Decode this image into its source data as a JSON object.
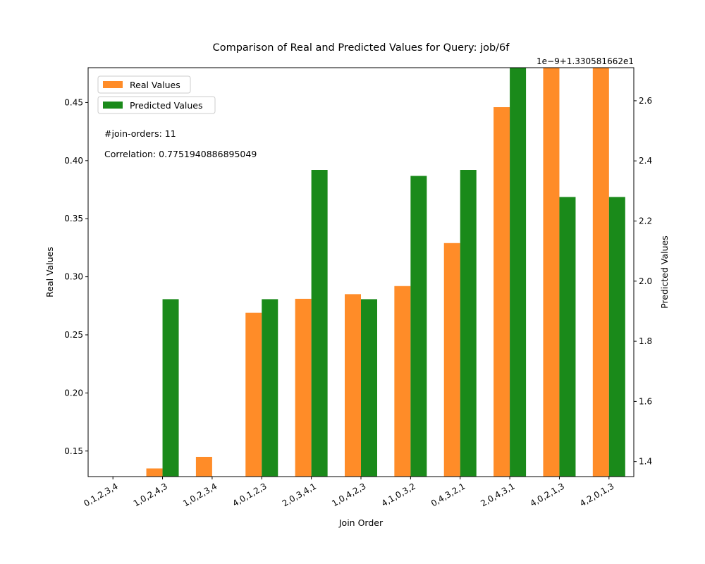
{
  "chart_data": {
    "type": "bar",
    "title": "Comparison of Real and Predicted Values for Query: job/6f",
    "xlabel": "Join Order",
    "ylabel": "Real Values",
    "y2label": "Predicted Values",
    "y2_offset_label": "1e−9+1.330581662e1",
    "categories": [
      "0,1,2,3,4",
      "1,0,2,4,3",
      "1,0,2,3,4",
      "4,0,1,2,3",
      "2,0,3,4,1",
      "1,0,4,2,3",
      "4,1,0,3,2",
      "0,4,3,2,1",
      "2,0,4,3,1",
      "4,0,2,1,3",
      "4,2,0,1,3"
    ],
    "series": [
      {
        "name": "Real Values",
        "axis": "left",
        "color": "#ff8c28",
        "values": [
          0.128,
          0.135,
          0.145,
          0.269,
          0.281,
          0.285,
          0.292,
          0.329,
          0.446,
          0.48,
          0.485
        ]
      },
      {
        "name": "Predicted Values",
        "axis": "right",
        "color": "#1a8a1a",
        "values": [
          1.34,
          1.94,
          1.34,
          1.94,
          2.37,
          1.94,
          2.35,
          2.37,
          2.71,
          2.28,
          2.28
        ]
      }
    ],
    "ylim": [
      0.128,
      0.48
    ],
    "y2lim": [
      1.35,
      2.71
    ],
    "yticks": [
      "0.15",
      "0.20",
      "0.25",
      "0.30",
      "0.35",
      "0.40",
      "0.45"
    ],
    "y2ticks": [
      "1.4",
      "1.6",
      "1.8",
      "2.0",
      "2.2",
      "2.4",
      "2.6"
    ],
    "legend_position": "top-left",
    "annotations": [
      "#join-orders: 11",
      "Correlation: 0.7751940886895049"
    ],
    "grid": false
  }
}
